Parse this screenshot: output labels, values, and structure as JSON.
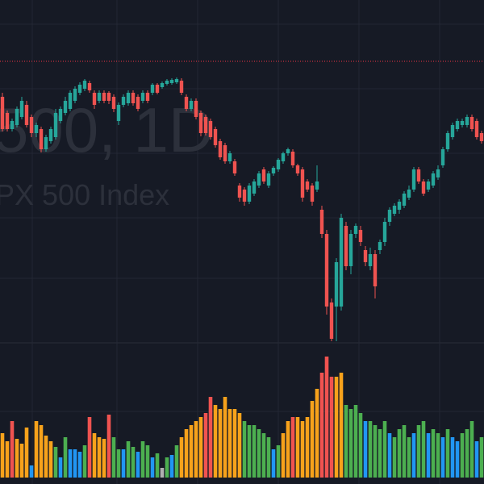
{
  "chart_data": {
    "type": "candlestick",
    "watermark_title": "500, 1D",
    "watermark_subtitle": "PX 500 Index",
    "up_color": "#26a69a",
    "down_color": "#ef5350",
    "ylim": [
      0,
      425
    ],
    "volume_ylim": [
      0,
      160
    ],
    "price_line": {
      "value": 349,
      "color": "#f23645"
    },
    "open": [
      305,
      285,
      265,
      270,
      280,
      295,
      280,
      260,
      265,
      240,
      250,
      255,
      275,
      285,
      290,
      300,
      310,
      315,
      322,
      310,
      300,
      310,
      310,
      305,
      275,
      295,
      297,
      310,
      305,
      300,
      310,
      310,
      320,
      317,
      321,
      322,
      323,
      325,
      305,
      290,
      300,
      285,
      280,
      275,
      265,
      250,
      245,
      225,
      225,
      195,
      190,
      175,
      185,
      195,
      215,
      195,
      210,
      215,
      225,
      235,
      237,
      220,
      215,
      200,
      195,
      190,
      165,
      135,
      50,
      45,
      45,
      145,
      95,
      135,
      140,
      115,
      95,
      110,
      115,
      125,
      150,
      160,
      165,
      170,
      180,
      190,
      215,
      200,
      190,
      195,
      205,
      220,
      240,
      255,
      265,
      270,
      270,
      280,
      275,
      260
    ],
    "high": [
      310,
      288,
      278,
      293,
      305,
      300,
      283,
      273,
      268,
      258,
      268,
      290,
      293,
      305,
      313,
      318,
      323,
      327,
      325,
      313,
      313,
      313,
      312,
      308,
      298,
      308,
      313,
      313,
      308,
      313,
      313,
      322,
      322,
      324,
      327,
      328,
      329,
      328,
      308,
      303,
      303,
      288,
      283,
      278,
      268,
      253,
      248,
      238,
      228,
      198,
      193,
      198,
      203,
      213,
      218,
      213,
      219,
      229,
      237,
      242,
      240,
      222,
      218,
      203,
      198,
      220,
      170,
      140,
      55,
      105,
      160,
      150,
      140,
      148,
      145,
      120,
      118,
      115,
      128,
      155,
      168,
      173,
      178,
      188,
      195,
      218,
      218,
      203,
      203,
      213,
      220,
      243,
      263,
      273,
      278,
      278,
      283,
      283,
      278,
      263
    ],
    "low": [
      262,
      262,
      262,
      267,
      277,
      267,
      255,
      255,
      236,
      237,
      247,
      252,
      272,
      282,
      287,
      297,
      307,
      312,
      310,
      290,
      297,
      297,
      296,
      286,
      270,
      292,
      294,
      294,
      287,
      297,
      297,
      307,
      308,
      315,
      319,
      320,
      321,
      307,
      287,
      287,
      277,
      256,
      257,
      252,
      242,
      227,
      222,
      222,
      207,
      175,
      170,
      172,
      182,
      192,
      197,
      192,
      207,
      212,
      222,
      232,
      217,
      207,
      175,
      187,
      170,
      187,
      130,
      35,
      2,
      2,
      40,
      90,
      85,
      130,
      120,
      95,
      90,
      55,
      110,
      120,
      145,
      157,
      160,
      167,
      177,
      187,
      197,
      182,
      187,
      192,
      202,
      217,
      237,
      252,
      262,
      267,
      267,
      262,
      252,
      247
    ],
    "close": [
      265,
      265,
      275,
      290,
      300,
      270,
      260,
      270,
      240,
      255,
      265,
      285,
      290,
      300,
      310,
      315,
      320,
      325,
      313,
      295,
      310,
      300,
      300,
      290,
      295,
      305,
      310,
      297,
      290,
      310,
      300,
      320,
      310,
      322,
      325,
      326,
      327,
      310,
      290,
      300,
      280,
      260,
      260,
      255,
      245,
      230,
      225,
      235,
      210,
      180,
      175,
      195,
      200,
      210,
      200,
      210,
      217,
      227,
      235,
      240,
      220,
      210,
      180,
      190,
      175,
      200,
      135,
      45,
      5,
      100,
      155,
      95,
      135,
      145,
      125,
      100,
      110,
      70,
      125,
      150,
      165,
      170,
      175,
      185,
      190,
      215,
      200,
      185,
      200,
      210,
      215,
      240,
      260,
      270,
      275,
      275,
      280,
      265,
      255,
      250
    ],
    "volume": [
      55,
      45,
      70,
      48,
      42,
      62,
      15,
      70,
      65,
      52,
      45,
      38,
      25,
      50,
      35,
      35,
      32,
      40,
      75,
      55,
      50,
      48,
      78,
      50,
      35,
      35,
      45,
      38,
      32,
      45,
      40,
      25,
      30,
      12,
      25,
      28,
      40,
      50,
      60,
      65,
      70,
      75,
      80,
      100,
      90,
      85,
      100,
      85,
      85,
      80,
      70,
      65,
      65,
      60,
      55,
      50,
      35,
      40,
      55,
      70,
      75,
      75,
      70,
      75,
      95,
      110,
      130,
      150,
      125,
      125,
      130,
      90,
      85,
      90,
      80,
      70,
      70,
      65,
      60,
      70,
      55,
      50,
      60,
      65,
      50,
      55,
      65,
      70,
      55,
      60,
      55,
      50,
      60,
      50,
      45,
      55,
      60,
      70,
      45,
      50
    ],
    "volume_colors": [
      "#f7a21b",
      "#f7a21b",
      "#f05350",
      "#f7a21b",
      "#f7a21b",
      "#f7a21b",
      "#2196f3",
      "#f7a21b",
      "#f7a21b",
      "#f7a21b",
      "#f7a21b",
      "#4caf50",
      "#2196f3",
      "#4caf50",
      "#2196f3",
      "#2196f3",
      "#2196f3",
      "#4caf50",
      "#f05350",
      "#f7a21b",
      "#f7a21b",
      "#f7a21b",
      "#f05350",
      "#4caf50",
      "#4caf50",
      "#2196f3",
      "#4caf50",
      "#4caf50",
      "#2196f3",
      "#4caf50",
      "#4caf50",
      "#2196f3",
      "#4caf50",
      "#b0b0b0",
      "#4caf50",
      "#2196f3",
      "#4caf50",
      "#f7a21b",
      "#f7a21b",
      "#f7a21b",
      "#f7a21b",
      "#f7a21b",
      "#f05350",
      "#f05350",
      "#f7a21b",
      "#f7a21b",
      "#f7a21b",
      "#f7a21b",
      "#f7a21b",
      "#f7a21b",
      "#4caf50",
      "#4caf50",
      "#4caf50",
      "#4caf50",
      "#4caf50",
      "#4caf50",
      "#2196f3",
      "#4caf50",
      "#f7a21b",
      "#f7a21b",
      "#f05350",
      "#f7a21b",
      "#f7a21b",
      "#f7a21b",
      "#f7a21b",
      "#f7a21b",
      "#f05350",
      "#f05350",
      "#f05350",
      "#f7a21b",
      "#f7a21b",
      "#4caf50",
      "#4caf50",
      "#4caf50",
      "#4caf50",
      "#2196f3",
      "#4caf50",
      "#4caf50",
      "#4caf50",
      "#4caf50",
      "#2196f3",
      "#4caf50",
      "#4caf50",
      "#4caf50",
      "#4caf50",
      "#2196f3",
      "#4caf50",
      "#4caf50",
      "#2196f3",
      "#4caf50",
      "#4caf50",
      "#2196f3",
      "#4caf50",
      "#2196f3",
      "#2196f3",
      "#4caf50",
      "#4caf50",
      "#4caf50",
      "#2196f3",
      "#4caf50"
    ]
  }
}
